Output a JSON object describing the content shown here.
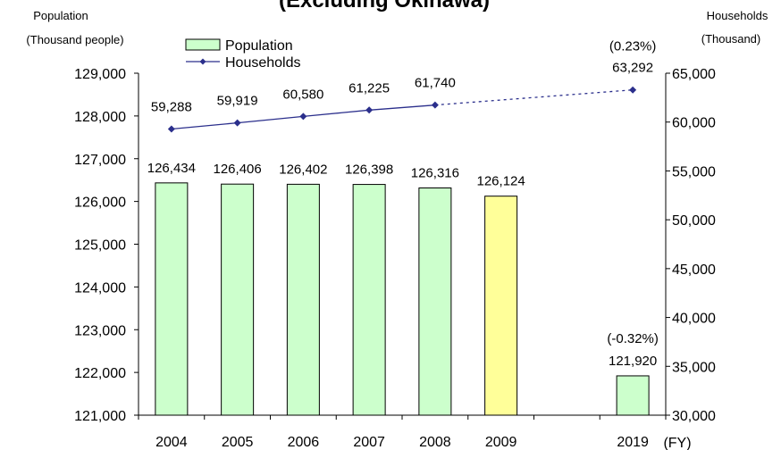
{
  "title": "(Excluding Okinawa)",
  "chart_data": {
    "type": "bar",
    "categories": [
      "2004",
      "2005",
      "2006",
      "2007",
      "2008",
      "2009",
      "2019"
    ],
    "x_unit": "(FY)",
    "left_axis": {
      "label_line1": "Population",
      "label_line2": "(Thousand people)",
      "ylim": [
        121000,
        129000
      ],
      "ticks": [
        "121,000",
        "122,000",
        "123,000",
        "124,000",
        "125,000",
        "126,000",
        "127,000",
        "128,000",
        "129,000"
      ],
      "tick_values": [
        121000,
        122000,
        123000,
        124000,
        125000,
        126000,
        127000,
        128000,
        129000
      ]
    },
    "right_axis": {
      "label_line1": "Households",
      "label_line2": "(Thousand)",
      "ylim": [
        30000,
        65000
      ],
      "ticks": [
        "30,000",
        "35,000",
        "40,000",
        "45,000",
        "50,000",
        "55,000",
        "60,000",
        "65,000"
      ],
      "tick_values": [
        30000,
        35000,
        40000,
        45000,
        50000,
        55000,
        60000,
        65000
      ]
    },
    "series": [
      {
        "name": "Population",
        "kind": "bar",
        "axis": "left",
        "values": [
          126434,
          126406,
          126402,
          126398,
          126316,
          126124,
          121920
        ],
        "labels": [
          "126,434",
          "126,406",
          "126,402",
          "126,398",
          "126,316",
          "126,124",
          "121,920"
        ],
        "colors": [
          "#ccffcc",
          "#ccffcc",
          "#ccffcc",
          "#ccffcc",
          "#ccffcc",
          "#ffff99",
          "#ccffcc"
        ]
      },
      {
        "name": "Households",
        "kind": "line",
        "axis": "right",
        "color": "#2b2f8c",
        "values": [
          59288,
          59919,
          60580,
          61225,
          61740,
          null,
          63292
        ],
        "labels": [
          "59,288",
          "59,919",
          "60,580",
          "61,225",
          "61,740",
          "",
          "63,292"
        ],
        "dashed_from_index": 4
      }
    ],
    "annotations": [
      {
        "category": "2019",
        "series": "Households",
        "text": "(0.23%)"
      },
      {
        "category": "2019",
        "series": "Population",
        "text": "(-0.32%)"
      }
    ],
    "legend": {
      "placement": "top-left",
      "items": [
        "Population",
        "Households"
      ]
    },
    "grid": false
  }
}
